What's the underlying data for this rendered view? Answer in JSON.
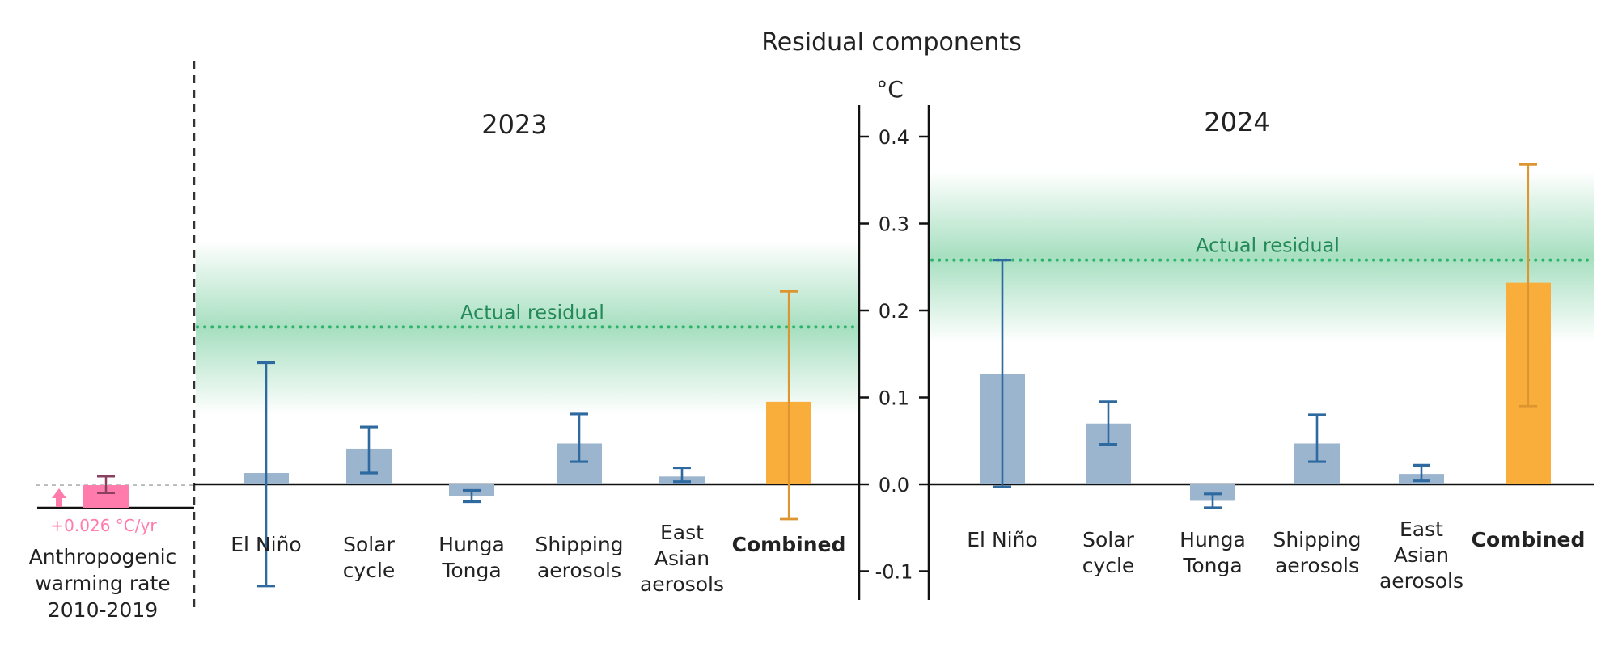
{
  "chart_data": {
    "type": "bar",
    "title": "Residual components",
    "ylabel": "°C",
    "ylim": [
      -0.13,
      0.43
    ],
    "yticks": [
      -0.1,
      0.0,
      0.1,
      0.2,
      0.3,
      0.4
    ],
    "ytick_labels": [
      "-0.1",
      "0.0",
      "0.1",
      "0.2",
      "0.3",
      "0.4"
    ],
    "grid": false,
    "colors": {
      "component_bar": "#9bb5cf",
      "component_err": "#2e6aa0",
      "combined_bar": "#f9ae3b",
      "combined_err": "#dd9530",
      "residual_line": "#2db36a",
      "residual_band": "#2db36a",
      "reference_bar": "#ff7bac",
      "reference_err": "#8a4060",
      "reference_text": "#ff7bac"
    },
    "reference": {
      "label_lines": [
        "Anthropogenic",
        "warming rate",
        "2010-2019"
      ],
      "value_label": "+0.026 °C/yr",
      "value": 0.026,
      "err": [
        0.017,
        0.036
      ]
    },
    "panels": [
      {
        "year": "2023",
        "actual_residual": 0.181,
        "actual_residual_label": "Actual residual",
        "residual_band": [
          0.08,
          0.28
        ],
        "categories": [
          {
            "lines": [
              "El Niño"
            ],
            "value": 0.013,
            "err": [
              -0.117,
              0.14
            ],
            "combined": false
          },
          {
            "lines": [
              "Solar",
              "cycle"
            ],
            "value": 0.041,
            "err": [
              0.013,
              0.066
            ],
            "combined": false
          },
          {
            "lines": [
              "Hunga",
              "Tonga"
            ],
            "value": -0.013,
            "err": [
              -0.02,
              -0.007
            ],
            "combined": false
          },
          {
            "lines": [
              "Shipping",
              "aerosols"
            ],
            "value": 0.047,
            "err": [
              0.026,
              0.081
            ],
            "combined": false
          },
          {
            "lines": [
              "East",
              "Asian",
              "aerosols"
            ],
            "value": 0.009,
            "err": [
              0.003,
              0.019
            ],
            "combined": false
          },
          {
            "lines": [
              "Combined"
            ],
            "value": 0.095,
            "err": [
              -0.04,
              0.222
            ],
            "combined": true
          }
        ]
      },
      {
        "year": "2024",
        "actual_residual": 0.258,
        "actual_residual_label": "Actual residual",
        "residual_band": [
          0.163,
          0.36
        ],
        "categories": [
          {
            "lines": [
              "El Niño"
            ],
            "value": 0.127,
            "err": [
              -0.003,
              0.258
            ],
            "combined": false
          },
          {
            "lines": [
              "Solar",
              "cycle"
            ],
            "value": 0.07,
            "err": [
              0.046,
              0.095
            ],
            "combined": false
          },
          {
            "lines": [
              "Hunga",
              "Tonga"
            ],
            "value": -0.019,
            "err": [
              -0.027,
              -0.011
            ],
            "combined": false
          },
          {
            "lines": [
              "Shipping",
              "aerosols"
            ],
            "value": 0.047,
            "err": [
              0.026,
              0.08
            ],
            "combined": false
          },
          {
            "lines": [
              "East",
              "Asian",
              "aerosols"
            ],
            "value": 0.012,
            "err": [
              0.004,
              0.022
            ],
            "combined": false
          },
          {
            "lines": [
              "Combined"
            ],
            "value": 0.232,
            "err": [
              0.09,
              0.368
            ],
            "combined": true
          }
        ]
      }
    ]
  }
}
